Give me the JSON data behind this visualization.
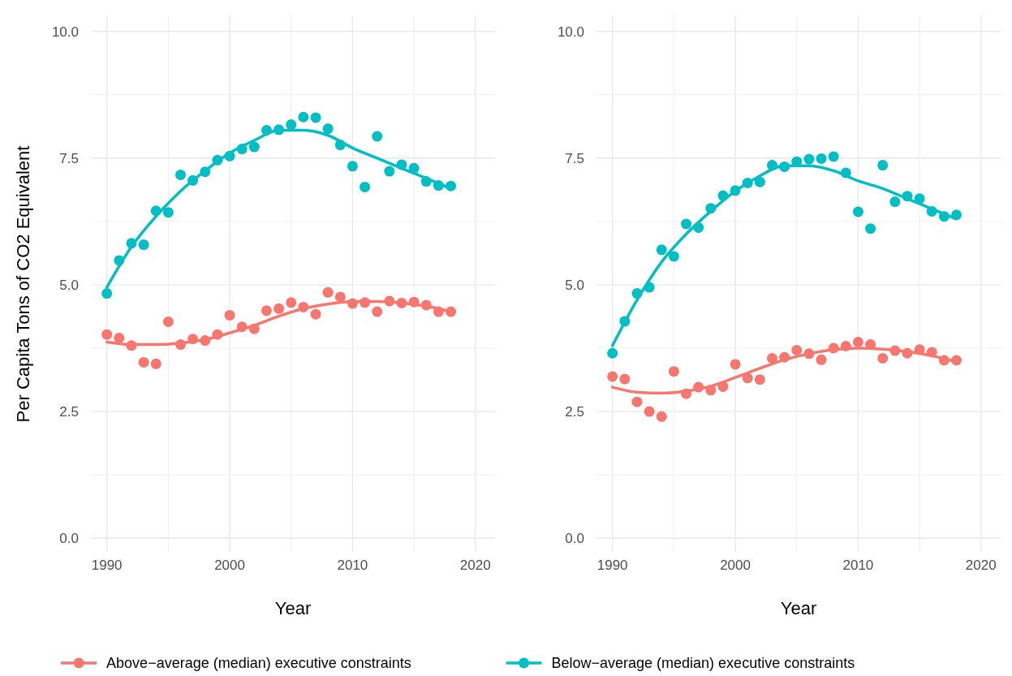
{
  "chart_data": [
    {
      "type": "scatter",
      "xlabel": "Year",
      "ylabel": "Per Capita Tons of CO2 Equivalent",
      "xlim": [
        1988.7,
        2021.6
      ],
      "ylim": [
        -0.27,
        10.3
      ],
      "xticks": [
        1990,
        2000,
        2010,
        2020
      ],
      "yticks": [
        {
          "value": 0,
          "label": "0.0"
        },
        {
          "value": 2.5,
          "label": "2.5"
        },
        {
          "value": 5,
          "label": "5.0"
        },
        {
          "value": 7.5,
          "label": "7.5"
        },
        {
          "value": 10,
          "label": "10.0"
        }
      ],
      "grid": true,
      "legend": "bottom",
      "x": [
        1990,
        1991,
        1992,
        1993,
        1994,
        1995,
        1996,
        1997,
        1998,
        1999,
        2000,
        2001,
        2002,
        2003,
        2004,
        2005,
        2006,
        2007,
        2008,
        2009,
        2010,
        2011,
        2012,
        2013,
        2014,
        2015,
        2016,
        2017,
        2018
      ],
      "series": [
        {
          "name": "Above−average (median) executive constraints",
          "marker": "circle",
          "color": "#f8766d",
          "values": [
            4.02,
            3.95,
            3.8,
            3.47,
            3.44,
            4.27,
            3.82,
            3.93,
            3.9,
            4.02,
            4.4,
            4.17,
            4.13,
            4.49,
            4.53,
            4.65,
            4.56,
            4.42,
            4.85,
            4.76,
            4.63,
            4.65,
            4.47,
            4.68,
            4.64,
            4.66,
            4.6,
            4.47,
            4.47
          ]
        },
        {
          "name": "Below−average (median) executive constraints",
          "marker": "circle",
          "color": "#00bfc4",
          "values": [
            4.83,
            5.48,
            5.82,
            5.79,
            6.46,
            6.43,
            7.17,
            7.06,
            7.23,
            7.46,
            7.54,
            7.68,
            7.72,
            8.05,
            8.06,
            8.16,
            8.31,
            8.3,
            8.08,
            7.76,
            7.34,
            6.93,
            7.93,
            7.24,
            7.37,
            7.3,
            7.04,
            6.96,
            6.95
          ]
        },
        {
          "type": "line",
          "color": "#f8766d",
          "x": [
            1990,
            1992,
            1994,
            1996,
            1998,
            2000,
            2002,
            2004,
            2006,
            2008,
            2010,
            2012,
            2014,
            2016,
            2018
          ],
          "values": [
            3.87,
            3.82,
            3.82,
            3.85,
            3.92,
            4.05,
            4.2,
            4.38,
            4.53,
            4.62,
            4.67,
            4.67,
            4.64,
            4.58,
            4.47
          ]
        },
        {
          "type": "line",
          "color": "#00bfc4",
          "x": [
            1990,
            1992,
            1994,
            1996,
            1998,
            2000,
            2002,
            2004,
            2006,
            2008,
            2010,
            2012,
            2014,
            2016,
            2018
          ],
          "values": [
            4.95,
            5.75,
            6.35,
            6.85,
            7.25,
            7.6,
            7.85,
            8.05,
            8.05,
            7.95,
            7.7,
            7.5,
            7.3,
            7.1,
            6.9
          ]
        }
      ]
    },
    {
      "type": "scatter",
      "xlabel": "Year",
      "xlim": [
        1988.7,
        2021.6
      ],
      "ylim": [
        -0.27,
        10.3
      ],
      "xticks": [
        1990,
        2000,
        2010,
        2020
      ],
      "yticks": [
        {
          "value": 0,
          "label": "0.0"
        },
        {
          "value": 2.5,
          "label": "2.5"
        },
        {
          "value": 5,
          "label": "5.0"
        },
        {
          "value": 7.5,
          "label": "7.5"
        },
        {
          "value": 10,
          "label": "10.0"
        }
      ],
      "grid": true,
      "x": [
        1990,
        1991,
        1992,
        1993,
        1994,
        1995,
        1996,
        1997,
        1998,
        1999,
        2000,
        2001,
        2002,
        2003,
        2004,
        2005,
        2006,
        2007,
        2008,
        2009,
        2010,
        2011,
        2012,
        2013,
        2014,
        2015,
        2016,
        2017,
        2018
      ],
      "series": [
        {
          "marker": "circle",
          "color": "#f8766d",
          "values": [
            3.19,
            3.14,
            2.69,
            2.5,
            2.4,
            3.29,
            2.85,
            2.98,
            2.92,
            2.99,
            3.43,
            3.16,
            3.13,
            3.55,
            3.57,
            3.71,
            3.64,
            3.52,
            3.75,
            3.79,
            3.87,
            3.82,
            3.55,
            3.7,
            3.65,
            3.72,
            3.67,
            3.51,
            3.51
          ]
        },
        {
          "marker": "circle",
          "color": "#00bfc4",
          "values": [
            3.65,
            4.28,
            4.83,
            4.95,
            5.69,
            5.56,
            6.2,
            6.13,
            6.51,
            6.76,
            6.86,
            7.01,
            7.03,
            7.36,
            7.33,
            7.43,
            7.48,
            7.49,
            7.53,
            7.21,
            6.44,
            6.11,
            7.36,
            6.64,
            6.75,
            6.7,
            6.45,
            6.35,
            6.38
          ]
        },
        {
          "type": "line",
          "color": "#f8766d",
          "x": [
            1990,
            1992,
            1994,
            1996,
            1998,
            2000,
            2002,
            2004,
            2006,
            2008,
            2010,
            2012,
            2014,
            2016,
            2018
          ],
          "values": [
            2.98,
            2.88,
            2.86,
            2.9,
            3.0,
            3.17,
            3.35,
            3.52,
            3.64,
            3.72,
            3.75,
            3.73,
            3.68,
            3.6,
            3.48
          ]
        },
        {
          "type": "line",
          "color": "#00bfc4",
          "x": [
            1990,
            1992,
            1994,
            1996,
            1998,
            2000,
            2002,
            2004,
            2006,
            2008,
            2010,
            2012,
            2014,
            2016,
            2018
          ],
          "values": [
            3.8,
            4.7,
            5.45,
            6.0,
            6.45,
            6.85,
            7.15,
            7.35,
            7.35,
            7.25,
            7.05,
            6.9,
            6.7,
            6.5,
            6.3
          ]
        }
      ]
    }
  ]
}
